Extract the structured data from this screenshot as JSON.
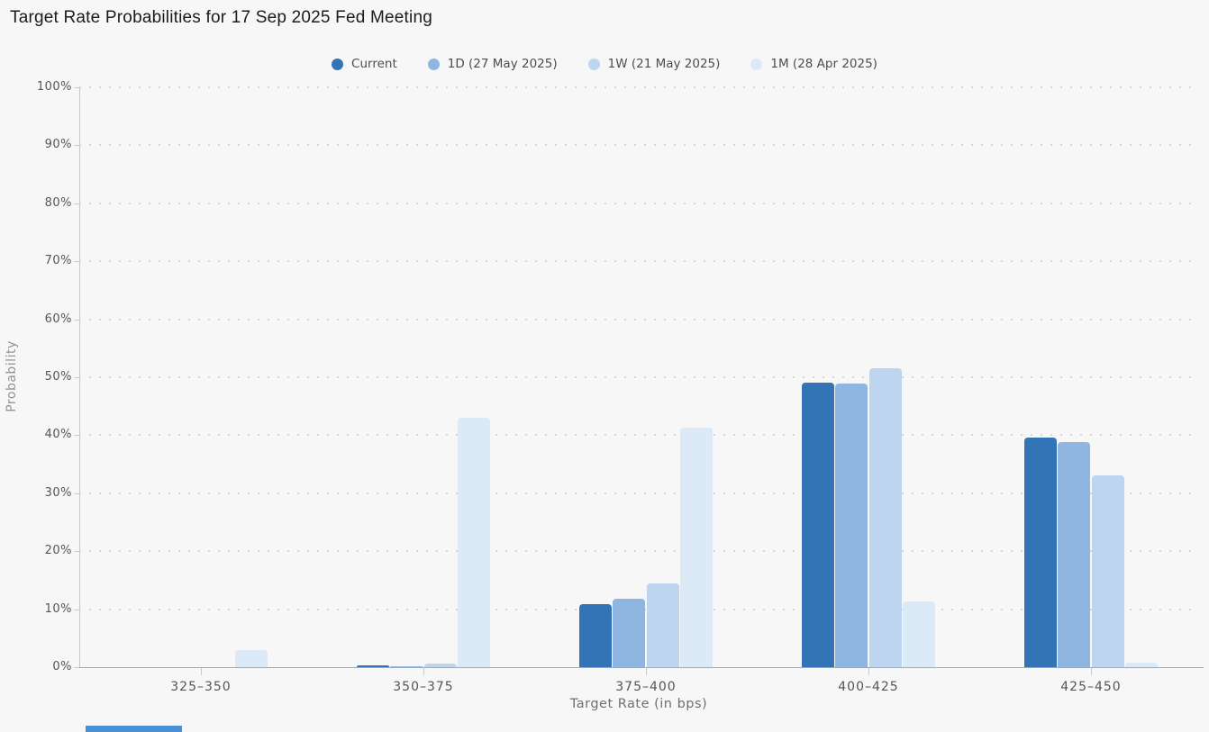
{
  "page": {
    "title": "Target Rate Probabilities for 17 Sep 2025 Fed Meeting",
    "background_color": "#f7f7f7"
  },
  "chart_data": {
    "type": "bar",
    "title": "Target Rate Probabilities for 17 Sep 2025 Fed Meeting",
    "xlabel": "Target Rate (in bps)",
    "ylabel": "Probability",
    "ylim": [
      0,
      100
    ],
    "y_tick_labels": [
      "0%",
      "10%",
      "20%",
      "30%",
      "40%",
      "50%",
      "60%",
      "70%",
      "80%",
      "90%",
      "100%"
    ],
    "grid": "dotted horizontal gridlines",
    "legend_position": "top-center",
    "categories": [
      "325–350",
      "350–375",
      "375–400",
      "400–425",
      "425–450"
    ],
    "series": [
      {
        "name": "Current",
        "color": "#3374b6",
        "values": [
          0,
          0.3,
          10.9,
          49.0,
          39.6
        ]
      },
      {
        "name": "1D (27 May 2025)",
        "color": "#8fb6e0",
        "values": [
          0,
          0.2,
          11.8,
          48.9,
          38.8
        ]
      },
      {
        "name": "1W (21 May 2025)",
        "color": "#bdd5ee",
        "values": [
          0,
          0.6,
          14.5,
          51.5,
          33.1
        ]
      },
      {
        "name": "1M (28 Apr 2025)",
        "color": "#dce9f6",
        "values": [
          2.9,
          43.0,
          41.3,
          11.3,
          0.8
        ]
      }
    ]
  },
  "colors": {
    "background": "#f7f7f7",
    "axis_line": "#c9c9c9",
    "baseline": "#a8a8a8",
    "gridline_dots": "#d6d6d6",
    "tick_label": "#555555",
    "y_axis_title": "#949494",
    "x_axis_title": "#6f6f6f",
    "title_text": "#1b1b1b",
    "legend_text": "#4d4d4d",
    "bottom_accent": "#4a90d9"
  }
}
